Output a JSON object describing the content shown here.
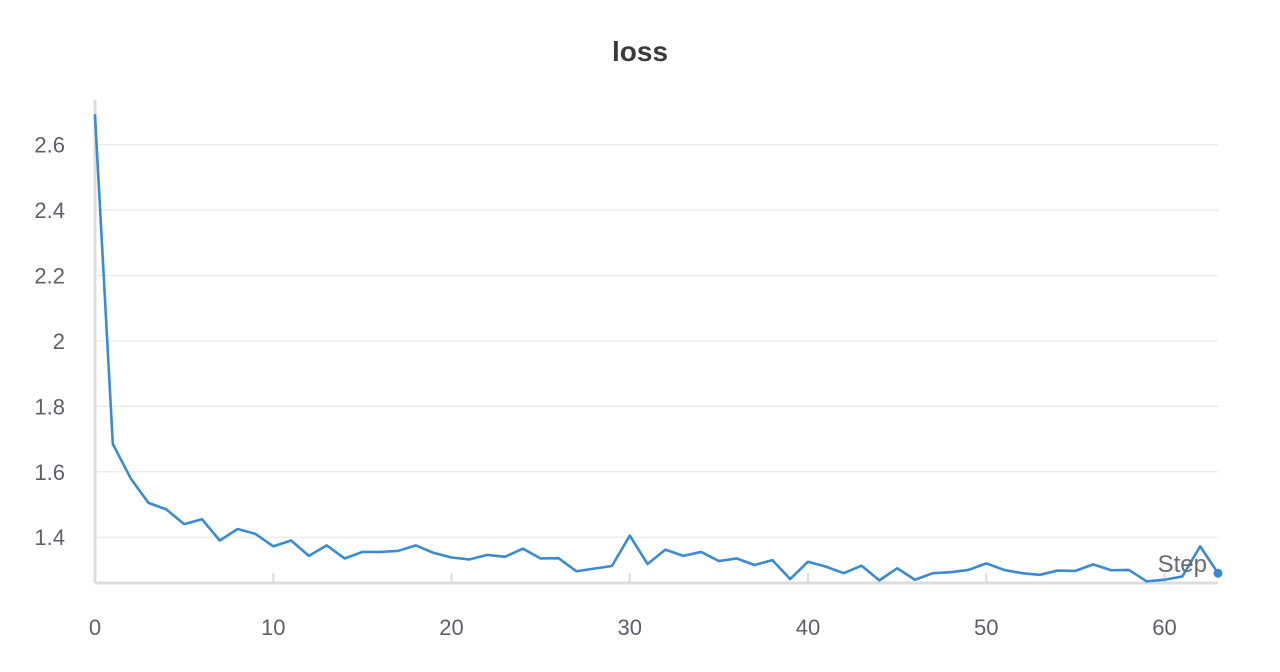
{
  "chart_data": {
    "type": "line",
    "title": "loss",
    "xlabel": "Step",
    "ylabel": "",
    "xlim": [
      0,
      63
    ],
    "ylim": [
      1.26,
      2.7
    ],
    "x_ticks": [
      0,
      10,
      20,
      30,
      40,
      50,
      60
    ],
    "y_ticks": [
      1.4,
      1.6,
      1.8,
      2,
      2.2,
      2.4,
      2.6
    ],
    "y_tick_labels": [
      "1.4",
      "1.6",
      "1.8",
      "2",
      "2.2",
      "2.4",
      "2.6"
    ],
    "grid": true,
    "series": [
      {
        "color": "#3b8bd4",
        "x": [
          0,
          1,
          2,
          3,
          4,
          5,
          6,
          7,
          8,
          9,
          10,
          11,
          12,
          13,
          14,
          15,
          16,
          17,
          18,
          19,
          20,
          21,
          22,
          23,
          24,
          25,
          26,
          27,
          28,
          29,
          30,
          31,
          32,
          33,
          34,
          35,
          36,
          37,
          38,
          39,
          40,
          41,
          42,
          43,
          44,
          45,
          46,
          47,
          48,
          49,
          50,
          51,
          52,
          53,
          54,
          55,
          56,
          57,
          58,
          59,
          60,
          61,
          62,
          63
        ],
        "values": [
          2.69,
          1.685,
          1.58,
          1.505,
          1.485,
          1.44,
          1.455,
          1.39,
          1.425,
          1.41,
          1.372,
          1.39,
          1.343,
          1.375,
          1.335,
          1.355,
          1.355,
          1.358,
          1.375,
          1.352,
          1.338,
          1.332,
          1.346,
          1.34,
          1.365,
          1.335,
          1.336,
          1.296,
          1.304,
          1.312,
          1.405,
          1.318,
          1.362,
          1.343,
          1.355,
          1.327,
          1.335,
          1.315,
          1.33,
          1.272,
          1.325,
          1.31,
          1.29,
          1.313,
          1.268,
          1.305,
          1.27,
          1.29,
          1.293,
          1.3,
          1.32,
          1.3,
          1.29,
          1.285,
          1.298,
          1.297,
          1.317,
          1.299,
          1.3,
          1.265,
          1.27,
          1.28,
          1.372,
          1.29
        ]
      }
    ]
  }
}
